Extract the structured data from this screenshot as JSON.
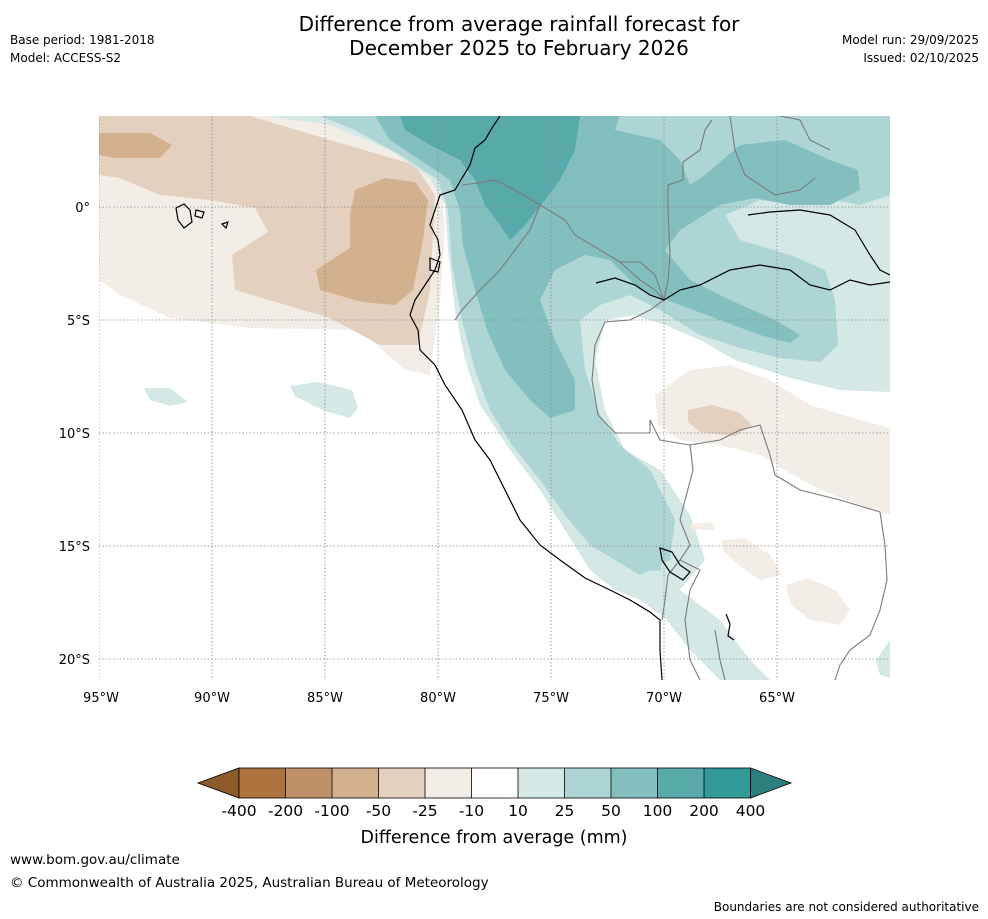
{
  "title": {
    "line1": "Difference from average rainfall forecast for",
    "line2": "December 2025 to February 2026"
  },
  "meta_left": {
    "base_period": "Base period: 1981-2018",
    "model": "Model: ACCESS-S2"
  },
  "meta_right": {
    "model_run": "Model run: 29/09/2025",
    "issued": "Issued: 02/10/2025"
  },
  "map": {
    "lat_labels": [
      "0°",
      "5°S",
      "10°S",
      "15°S",
      "20°S"
    ],
    "lon_labels": [
      "95°W",
      "90°W",
      "85°W",
      "80°W",
      "75°W",
      "70°W",
      "65°W"
    ]
  },
  "legend": {
    "title": "Difference from average (mm)",
    "tick_labels": [
      "-400",
      "-200",
      "-100",
      "-50",
      "-25",
      "-10",
      "10",
      "25",
      "50",
      "100",
      "200",
      "400"
    ],
    "colors": {
      "below_400": "#8c5a2b",
      "m400_m200": "#ad733d",
      "m200_m100": "#c09168",
      "m100_m50": "#d3b08e",
      "m50_m25": "#e3d0bf",
      "m25_m10": "#f2ede7",
      "m10_p10": "#ffffff",
      "p10_p25": "#d4e8e6",
      "p25_p50": "#acd5d3",
      "p50_p100": "#84bfbf",
      "p100_p200": "#58a9a9",
      "p200_p400": "#329a97",
      "above_400": "#2b7f7c"
    }
  },
  "footer": {
    "url": "www.bom.gov.au/climate",
    "copyright": "© Commonwealth of Australia 2025, Australian Bureau of Meteorology",
    "disclaimer": "Boundaries are not considered authoritative"
  }
}
